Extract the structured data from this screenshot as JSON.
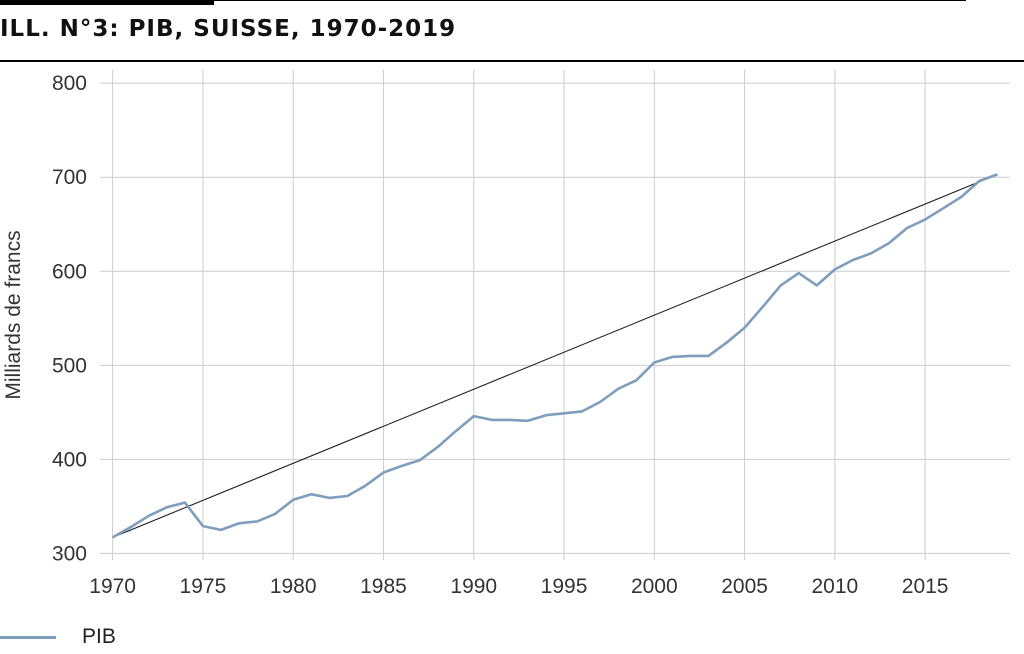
{
  "title": "ILL. N°3: PIB, SUISSE, 1970-2019",
  "legend": {
    "label": "PIB",
    "color": "#7f9ebd"
  },
  "chart_data": {
    "type": "line",
    "ylabel": "Milliards de francs",
    "xlabel": "",
    "xlim": [
      1969.3,
      2019.7
    ],
    "ylim": [
      293,
      814
    ],
    "x_ticks": [
      1970,
      1975,
      1980,
      1985,
      1990,
      1995,
      2000,
      2005,
      2010,
      2015
    ],
    "y_ticks": [
      300,
      400,
      500,
      600,
      700,
      800
    ],
    "grid": true,
    "legend_position": "bottom-left",
    "series": [
      {
        "name": "PIB",
        "color": "#7f9ebd",
        "x": [
          1970,
          1971,
          1972,
          1973,
          1974,
          1975,
          1976,
          1977,
          1978,
          1979,
          1980,
          1981,
          1982,
          1983,
          1984,
          1985,
          1986,
          1987,
          1988,
          1989,
          1990,
          1991,
          1992,
          1993,
          1994,
          1995,
          1996,
          1997,
          1998,
          1999,
          2000,
          2001,
          2002,
          2003,
          2004,
          2005,
          2006,
          2007,
          2008,
          2009,
          2010,
          2011,
          2012,
          2013,
          2014,
          2015,
          2016,
          2017,
          2018,
          2019
        ],
        "y": [
          317,
          328,
          340,
          349,
          354,
          329,
          325,
          332,
          334,
          342,
          357,
          363,
          359,
          361,
          372,
          386,
          393,
          399,
          413,
          430,
          446,
          442,
          442,
          441,
          447,
          449,
          451,
          461,
          475,
          484,
          503,
          509,
          510,
          510,
          524,
          540,
          562,
          585,
          598,
          585,
          602,
          612,
          619,
          630,
          646,
          655,
          667,
          679,
          696,
          703
        ]
      },
      {
        "name": "",
        "color": "#222222",
        "x": [
          1970,
          2019
        ],
        "y": [
          317,
          703
        ]
      }
    ]
  }
}
